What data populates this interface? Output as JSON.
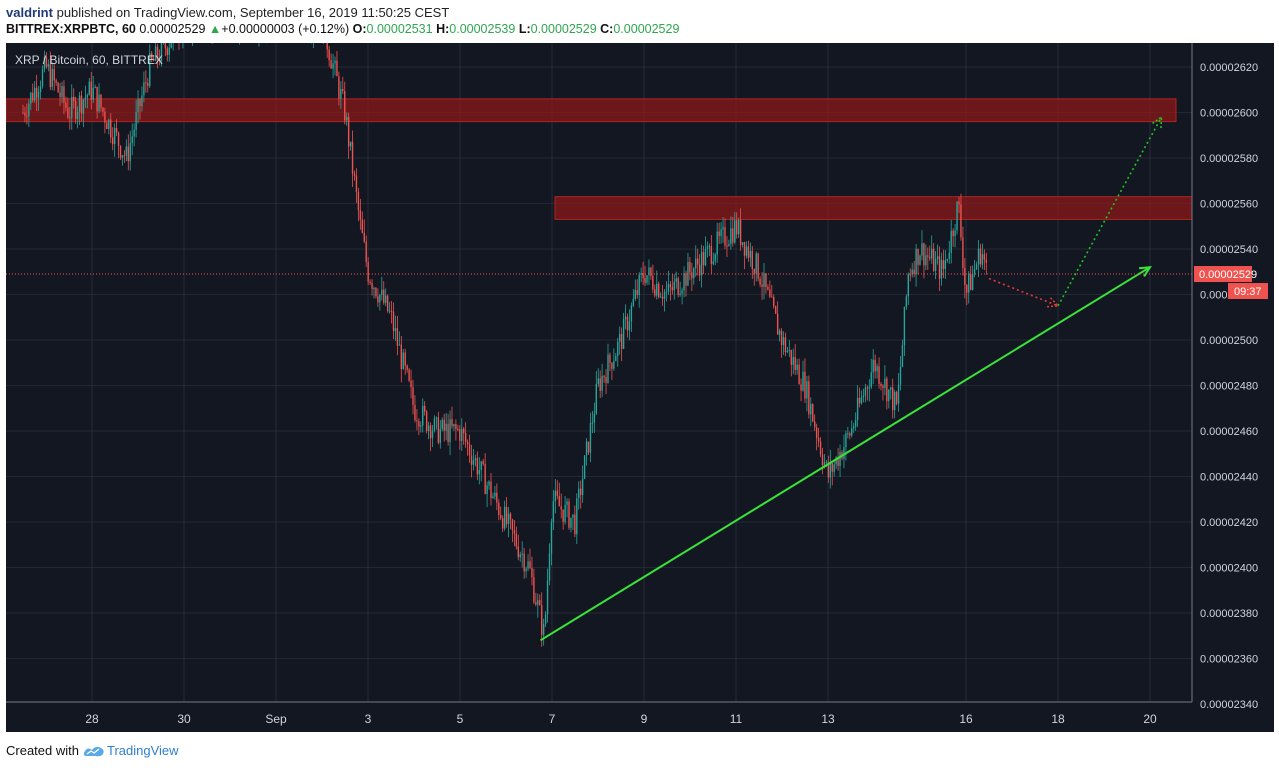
{
  "header": {
    "author": "valdrint",
    "published_text": "published on TradingView.com, September 16, 2019 11:50:25 CEST"
  },
  "ohlc": {
    "symbol": "BITTREX:XRPBTC, 60",
    "last": "0.00002529",
    "change": "+0.00000003 (+0.12%)",
    "o_label": "O:",
    "o": "0.00002531",
    "h_label": "H:",
    "h": "0.00002539",
    "l_label": "L:",
    "l": "0.00002529",
    "c_label": "C:",
    "c": "0.00002529"
  },
  "footer": {
    "created_with": "Created with",
    "brand": "TradingView"
  },
  "colors": {
    "background": "#131722",
    "grid": "#363a45",
    "up": "#26a69a",
    "down": "#ef5350",
    "zone": "#8b1a1a",
    "trendline": "#39e339",
    "target": "#22c322",
    "pullback": "#e53935"
  },
  "chart_data": {
    "type": "candlestick",
    "title": "XRP / Bitcoin, 60, BITTREX",
    "xlabel": "",
    "ylabel": "",
    "x_tick_labels": [
      "28",
      "30",
      "Sep",
      "3",
      "5",
      "7",
      "9",
      "11",
      "13",
      "16",
      "18",
      "20"
    ],
    "y_tick_labels": [
      "0.00002340",
      "0.00002360",
      "0.00002380",
      "0.00002400",
      "0.00002420",
      "0.00002440",
      "0.00002460",
      "0.00002480",
      "0.00002500",
      "0.00002520",
      "0.00002540",
      "0.00002560",
      "0.00002580",
      "0.00002600",
      "0.00002620"
    ],
    "ylim": [
      2.336e-05,
      2.64e-05
    ],
    "last_price_label": "0.00002529",
    "countdown_label": "09:37",
    "price_path": [
      [
        "Aug 26 12:00",
        2.6e-05
      ],
      [
        "Aug 27 00:00",
        2.62e-05
      ],
      [
        "Aug 27 12:00",
        2.6e-05
      ],
      [
        "Aug 28 00:00",
        2.61e-05
      ],
      [
        "Aug 28 18:00",
        2.58e-05
      ],
      [
        "Aug 29 06:00",
        2.62e-05
      ],
      [
        "Aug 30 00:00",
        2.64e-05
      ],
      [
        "Sep 2 00:00",
        2.64e-05
      ],
      [
        "Sep 2 12:00",
        2.6e-05
      ],
      [
        "Sep 2 20:00",
        2.55e-05
      ],
      [
        "Sep 3 00:00",
        2.53e-05
      ],
      [
        "Sep 3 12:00",
        2.51e-05
      ],
      [
        "Sep 4 00:00",
        2.47e-05
      ],
      [
        "Sep 4 12:00",
        2.46e-05
      ],
      [
        "Sep 5 00:00",
        2.46e-05
      ],
      [
        "Sep 5 12:00",
        2.44e-05
      ],
      [
        "Sep 6 00:00",
        2.42e-05
      ],
      [
        "Sep 6 12:00",
        2.4e-05
      ],
      [
        "Sep 6 20:00",
        2.37e-05
      ],
      [
        "Sep 7 00:00",
        2.43e-05
      ],
      [
        "Sep 7 12:00",
        2.42e-05
      ],
      [
        "Sep 8 00:00",
        2.48e-05
      ],
      [
        "Sep 8 12:00",
        2.5e-05
      ],
      [
        "Sep 9 00:00",
        2.53e-05
      ],
      [
        "Sep 9 12:00",
        2.52e-05
      ],
      [
        "Sep 10 00:00",
        2.53e-05
      ],
      [
        "Sep 10 12:00",
        2.54e-05
      ],
      [
        "Sep 11 00:00",
        2.55e-05
      ],
      [
        "Sep 11 12:00",
        2.53e-05
      ],
      [
        "Sep 12 00:00",
        2.5e-05
      ],
      [
        "Sep 12 12:00",
        2.48e-05
      ],
      [
        "Sep 13 00:00",
        2.44e-05
      ],
      [
        "Sep 13 12:00",
        2.46e-05
      ],
      [
        "Sep 14 00:00",
        2.49e-05
      ],
      [
        "Sep 14 12:00",
        2.47e-05
      ],
      [
        "Sep 14 18:00",
        2.53e-05
      ],
      [
        "Sep 15 00:00",
        2.54e-05
      ],
      [
        "Sep 15 12:00",
        2.53e-05
      ],
      [
        "Sep 15 20:00",
        2.56e-05
      ],
      [
        "Sep 16 00:00",
        2.52e-05
      ],
      [
        "Sep 16 08:00",
        2.54e-05
      ],
      [
        "Sep 16 11:00",
        2.529e-05
      ]
    ],
    "resistance_zones": [
      {
        "from": 2.596e-05,
        "to": 2.606e-05
      },
      {
        "from": 2.553e-05,
        "to": 2.563e-05
      }
    ],
    "trendline": {
      "start": [
        "Sep 6 18:00",
        2.368e-05
      ],
      "end": [
        "Sep 20 00:00",
        2.532e-05
      ]
    },
    "projection": [
      [
        "Sep 16 12:00",
        2.527e-05
      ],
      [
        "Sep 18 00:00",
        2.515e-05
      ],
      [
        "Sep 20 06:00",
        2.598e-05
      ]
    ]
  }
}
